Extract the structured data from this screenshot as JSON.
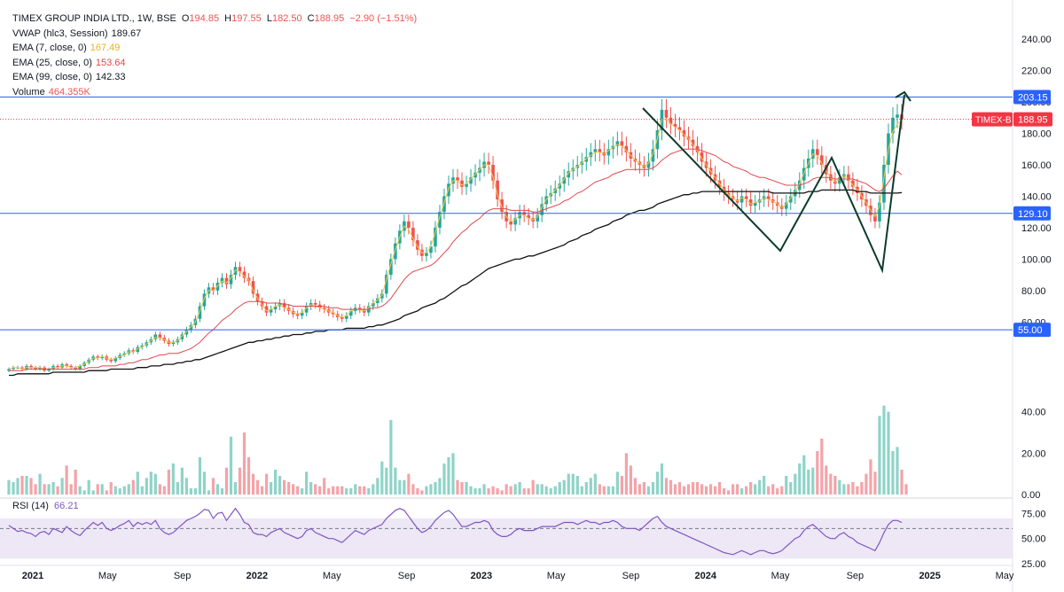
{
  "legend": {
    "symbol": "TIMEX GROUP INDIA LTD., 1W, BSE",
    "o_label": "O",
    "o_val": "194.85",
    "h_label": "H",
    "h_val": "197.55",
    "l_label": "L",
    "l_val": "182.50",
    "c_label": "C",
    "c_val": "188.95",
    "change": "−2.90 (−1.51%)",
    "vwap_label": "VWAP (hlc3, Session)",
    "vwap_val": "189.67",
    "ema7_label": "EMA (7, close, 0)",
    "ema7_val": "167.49",
    "ema25_label": "EMA (25, close, 0)",
    "ema25_val": "153.64",
    "ema99_label": "EMA (99, close, 0)",
    "ema99_val": "142.33",
    "vol_label": "Volume",
    "vol_val": "464.355K"
  },
  "rsi_legend": {
    "label": "RSI (14)",
    "value": "66.21"
  },
  "colors": {
    "up": "#26a69a",
    "down": "#ef5350",
    "vol_up": "#8fd3c8",
    "vol_down": "#f4a3a8",
    "ema7": "#f2c94c",
    "ema25": "#e0484f",
    "ema99": "#111111",
    "hline": "#2962ff",
    "rsi": "#7e57c2",
    "rsi_band": "#ede7f6",
    "last_price": "#f23645",
    "trend": "#0c3a2c"
  },
  "chart_data": {
    "type": "candlestick",
    "price_axis": {
      "ticks": [
        240,
        220,
        200,
        180,
        160,
        140,
        120,
        100,
        80,
        60
      ],
      "labels": [
        "240.00",
        "220.00",
        "200.00",
        "180.00",
        "160.00",
        "140.00",
        "120.00",
        "100.00",
        "80.00",
        "60.00"
      ],
      "range": [
        28,
        248
      ]
    },
    "volume_axis": {
      "ticks": [
        40,
        20,
        0
      ],
      "labels": [
        "40.00",
        "20.00",
        "0.00"
      ]
    },
    "rsi_axis": {
      "ticks": [
        75,
        50,
        25
      ],
      "labels": [
        "75.00",
        "50.00",
        "25.00"
      ],
      "range": [
        25,
        85
      ],
      "band": [
        30,
        70
      ],
      "dashed_level": 60
    },
    "time_axis": {
      "labels": [
        "2021",
        "May",
        "Sep",
        "2022",
        "May",
        "Sep",
        "2023",
        "May",
        "Sep",
        "2024",
        "May",
        "Sep",
        "2025",
        "May"
      ],
      "start": "2021-01",
      "end": "2025-06"
    },
    "horizontal_levels": [
      {
        "value": 203.15,
        "label": "203.15"
      },
      {
        "value": 129.1,
        "label": "129.10"
      },
      {
        "value": 55.0,
        "label": "55.00"
      }
    ],
    "last_price": {
      "tag": "TIMEX-B",
      "value": 188.95,
      "label": "188.95"
    },
    "closes": [
      30,
      31,
      31,
      30,
      32,
      31,
      30,
      31,
      29,
      30,
      32,
      31,
      33,
      32,
      31,
      30,
      32,
      34,
      36,
      38,
      37,
      38,
      36,
      35,
      37,
      39,
      40,
      42,
      41,
      44,
      45,
      47,
      49,
      52,
      50,
      48,
      46,
      47,
      49,
      52,
      55,
      58,
      62,
      70,
      78,
      82,
      80,
      85,
      88,
      84,
      90,
      95,
      92,
      88,
      86,
      78,
      73,
      70,
      66,
      68,
      70,
      72,
      69,
      67,
      65,
      64,
      66,
      70,
      72,
      71,
      69,
      68,
      66,
      65,
      63,
      62,
      64,
      67,
      69,
      68,
      66,
      70,
      72,
      75,
      78,
      90,
      100,
      110,
      118,
      124,
      120,
      112,
      106,
      102,
      104,
      108,
      120,
      130,
      140,
      148,
      152,
      150,
      146,
      148,
      152,
      155,
      158,
      162,
      160,
      150,
      138,
      130,
      124,
      122,
      126,
      130,
      128,
      126,
      124,
      128,
      135,
      140,
      142,
      145,
      148,
      152,
      156,
      158,
      160,
      162,
      165,
      168,
      170,
      168,
      166,
      170,
      172,
      175,
      172,
      168,
      164,
      162,
      160,
      158,
      162,
      170,
      182,
      195,
      190,
      186,
      184,
      182,
      178,
      176,
      172,
      168,
      162,
      158,
      154,
      150,
      146,
      142,
      140,
      138,
      136,
      140,
      138,
      134,
      136,
      138,
      140,
      138,
      136,
      134,
      132,
      136,
      140,
      144,
      150,
      158,
      164,
      170,
      166,
      160,
      154,
      150,
      148,
      152,
      154,
      150,
      146,
      142,
      138,
      134,
      128,
      124,
      136,
      160,
      180,
      190,
      192,
      188.95
    ],
    "ema7": [
      30,
      31,
      31,
      30,
      31,
      31,
      31,
      31,
      30,
      30,
      31,
      31,
      32,
      32,
      31,
      31,
      32,
      33,
      35,
      37,
      37,
      38,
      37,
      36,
      37,
      38,
      39,
      41,
      41,
      43,
      44,
      46,
      48,
      50,
      50,
      49,
      47,
      47,
      48,
      51,
      54,
      57,
      60,
      67,
      75,
      80,
      80,
      83,
      86,
      85,
      88,
      93,
      92,
      89,
      87,
      80,
      75,
      71,
      67,
      68,
      70,
      71,
      69,
      68,
      66,
      65,
      66,
      69,
      71,
      70,
      69,
      68,
      67,
      66,
      64,
      63,
      64,
      67,
      68,
      68,
      67,
      69,
      72,
      74,
      77,
      87,
      97,
      106,
      114,
      121,
      119,
      113,
      108,
      104,
      104,
      108,
      117,
      127,
      136,
      145,
      150,
      150,
      147,
      148,
      151,
      154,
      157,
      160,
      160,
      152,
      141,
      133,
      127,
      124,
      125,
      128,
      128,
      126,
      125,
      127,
      133,
      138,
      141,
      144,
      147,
      151,
      155,
      157,
      159,
      161,
      164,
      166,
      168,
      168,
      167,
      169,
      171,
      173,
      172,
      169,
      166,
      163,
      161,
      159,
      161,
      167,
      177,
      189,
      189,
      186,
      184,
      182,
      179,
      177,
      173,
      169,
      164,
      160,
      156,
      152,
      148,
      144,
      141,
      139,
      137,
      139,
      138,
      135,
      136,
      137,
      139,
      138,
      137,
      135,
      133,
      135,
      139,
      143,
      148,
      155,
      161,
      167,
      166,
      161,
      156,
      152,
      149,
      151,
      153,
      151,
      147,
      144,
      140,
      136,
      131,
      127,
      134,
      152,
      170,
      181,
      186,
      188
    ],
    "ema25": [
      29,
      29,
      29,
      29,
      30,
      30,
      30,
      30,
      30,
      30,
      30,
      30,
      30,
      30,
      30,
      30,
      30,
      30,
      31,
      31,
      31,
      32,
      32,
      32,
      32,
      33,
      33,
      34,
      34,
      35,
      36,
      36,
      37,
      38,
      39,
      39,
      40,
      40,
      40,
      41,
      42,
      43,
      45,
      47,
      50,
      53,
      55,
      58,
      61,
      63,
      65,
      68,
      70,
      72,
      73,
      73,
      73,
      73,
      72,
      72,
      72,
      72,
      71,
      71,
      70,
      70,
      70,
      70,
      70,
      70,
      70,
      70,
      69,
      69,
      69,
      68,
      68,
      68,
      68,
      68,
      68,
      68,
      69,
      69,
      70,
      72,
      75,
      79,
      83,
      87,
      90,
      92,
      93,
      94,
      95,
      96,
      98,
      101,
      104,
      107,
      111,
      114,
      117,
      119,
      122,
      124,
      126,
      129,
      131,
      132,
      132,
      132,
      132,
      131,
      131,
      131,
      131,
      131,
      130,
      130,
      131,
      132,
      133,
      134,
      135,
      137,
      138,
      140,
      142,
      143,
      145,
      147,
      149,
      150,
      151,
      152,
      154,
      155,
      156,
      157,
      157,
      157,
      157,
      157,
      157,
      158,
      160,
      163,
      165,
      167,
      168,
      169,
      170,
      170,
      170,
      170,
      169,
      168,
      167,
      166,
      164,
      162,
      161,
      159,
      158,
      157,
      156,
      154,
      153,
      152,
      152,
      151,
      150,
      149,
      148,
      147,
      147,
      147,
      147,
      148,
      149,
      151,
      152,
      152,
      152,
      152,
      151,
      151,
      151,
      151,
      151,
      150,
      149,
      148,
      146,
      144,
      143,
      145,
      149,
      153,
      156,
      153.64
    ],
    "ema99": [
      26,
      26,
      27,
      27,
      27,
      27,
      27,
      27,
      27,
      27,
      28,
      28,
      28,
      28,
      28,
      28,
      28,
      28,
      29,
      29,
      29,
      29,
      29,
      30,
      30,
      30,
      30,
      30,
      30,
      31,
      31,
      31,
      32,
      32,
      32,
      33,
      33,
      33,
      34,
      34,
      35,
      35,
      36,
      36,
      37,
      38,
      39,
      40,
      41,
      42,
      43,
      44,
      45,
      46,
      47,
      47,
      48,
      48,
      49,
      49,
      50,
      50,
      51,
      51,
      52,
      52,
      52,
      53,
      53,
      54,
      54,
      54,
      55,
      55,
      55,
      55,
      56,
      56,
      56,
      56,
      56,
      57,
      57,
      58,
      58,
      59,
      60,
      61,
      62,
      64,
      65,
      66,
      67,
      69,
      70,
      71,
      72,
      74,
      75,
      77,
      79,
      81,
      83,
      84,
      86,
      88,
      90,
      92,
      94,
      95,
      96,
      97,
      98,
      99,
      100,
      100,
      101,
      102,
      102,
      103,
      104,
      105,
      106,
      107,
      108,
      109,
      111,
      112,
      113,
      115,
      116,
      117,
      119,
      120,
      121,
      122,
      124,
      125,
      126,
      128,
      129,
      130,
      131,
      131,
      132,
      133,
      135,
      136,
      137,
      138,
      139,
      140,
      141,
      141,
      142,
      142,
      143,
      143,
      143,
      143,
      143,
      143,
      143,
      143,
      143,
      143,
      143,
      143,
      143,
      143,
      143,
      143,
      142,
      142,
      142,
      142,
      142,
      142,
      142,
      142,
      143,
      143,
      143,
      144,
      144,
      144,
      144,
      144,
      144,
      144,
      144,
      143,
      143,
      143,
      142,
      142,
      142,
      142,
      142,
      142,
      142,
      142.33
    ],
    "volume": [
      7,
      6,
      8,
      9,
      9,
      8,
      5,
      10,
      5,
      5,
      6,
      4,
      8,
      14,
      5,
      12,
      4,
      2,
      7,
      2,
      5,
      5,
      2,
      6,
      4,
      3,
      4,
      5,
      7,
      11,
      4,
      8,
      11,
      10,
      5,
      4,
      12,
      15,
      6,
      13,
      8,
      3,
      3,
      18,
      11,
      2,
      8,
      5,
      3,
      13,
      28,
      6,
      13,
      30,
      18,
      10,
      7,
      4,
      10,
      6,
      12,
      9,
      7,
      6,
      5,
      4,
      3,
      11,
      6,
      5,
      4,
      8,
      3,
      4,
      4,
      4,
      3,
      3,
      5,
      4,
      4,
      3,
      5,
      8,
      16,
      13,
      36,
      13,
      7,
      7,
      10,
      5,
      3,
      2,
      4,
      5,
      6,
      8,
      15,
      18,
      20,
      7,
      6,
      6,
      4,
      3,
      3,
      5,
      3,
      4,
      3,
      2,
      5,
      4,
      5,
      6,
      3,
      3,
      7,
      5,
      5,
      4,
      3,
      4,
      6,
      7,
      10,
      10,
      9,
      4,
      6,
      8,
      10,
      5,
      4,
      4,
      4,
      11,
      9,
      20,
      14,
      8,
      5,
      6,
      4,
      6,
      11,
      15,
      8,
      7,
      5,
      6,
      4,
      5,
      6,
      6,
      5,
      4,
      5,
      4,
      6,
      3,
      2,
      5,
      5,
      3,
      4,
      6,
      5,
      7,
      9,
      4,
      5,
      3,
      4,
      9,
      6,
      10,
      15,
      19,
      12,
      13,
      21,
      27,
      14,
      10,
      9,
      7,
      5,
      5,
      6,
      4,
      6,
      10,
      17,
      11,
      38,
      43,
      40,
      21,
      23,
      12,
      5
    ],
    "rsi": [
      63,
      60,
      57,
      58,
      56,
      55,
      52,
      56,
      57,
      54,
      60,
      58,
      56,
      62,
      58,
      55,
      53,
      58,
      62,
      66,
      63,
      66,
      60,
      58,
      60,
      63,
      65,
      68,
      62,
      66,
      64,
      66,
      64,
      68,
      60,
      56,
      54,
      56,
      60,
      64,
      68,
      70,
      72,
      75,
      79,
      78,
      70,
      75,
      76,
      68,
      74,
      80,
      74,
      66,
      64,
      56,
      54,
      54,
      52,
      56,
      58,
      60,
      56,
      54,
      52,
      50,
      52,
      58,
      60,
      56,
      54,
      52,
      50,
      50,
      48,
      46,
      50,
      54,
      58,
      56,
      54,
      58,
      60,
      62,
      64,
      70,
      74,
      78,
      80,
      78,
      72,
      66,
      60,
      56,
      58,
      62,
      68,
      72,
      76,
      78,
      74,
      68,
      62,
      62,
      64,
      66,
      66,
      68,
      66,
      58,
      54,
      52,
      52,
      54,
      58,
      60,
      58,
      58,
      58,
      60,
      62,
      62,
      62,
      62,
      64,
      66,
      66,
      66,
      64,
      66,
      68,
      66,
      66,
      64,
      66,
      66,
      68,
      66,
      62,
      60,
      60,
      60,
      58,
      62,
      66,
      70,
      72,
      66,
      62,
      60,
      58,
      56,
      54,
      52,
      50,
      48,
      46,
      44,
      42,
      40,
      38,
      36,
      35,
      34,
      36,
      38,
      36,
      34,
      36,
      38,
      38,
      36,
      35,
      36,
      38,
      42,
      46,
      50,
      52,
      58,
      62,
      64,
      60,
      56,
      52,
      50,
      50,
      54,
      56,
      52,
      50,
      46,
      44,
      42,
      40,
      38,
      46,
      56,
      64,
      68,
      68,
      66
    ]
  }
}
